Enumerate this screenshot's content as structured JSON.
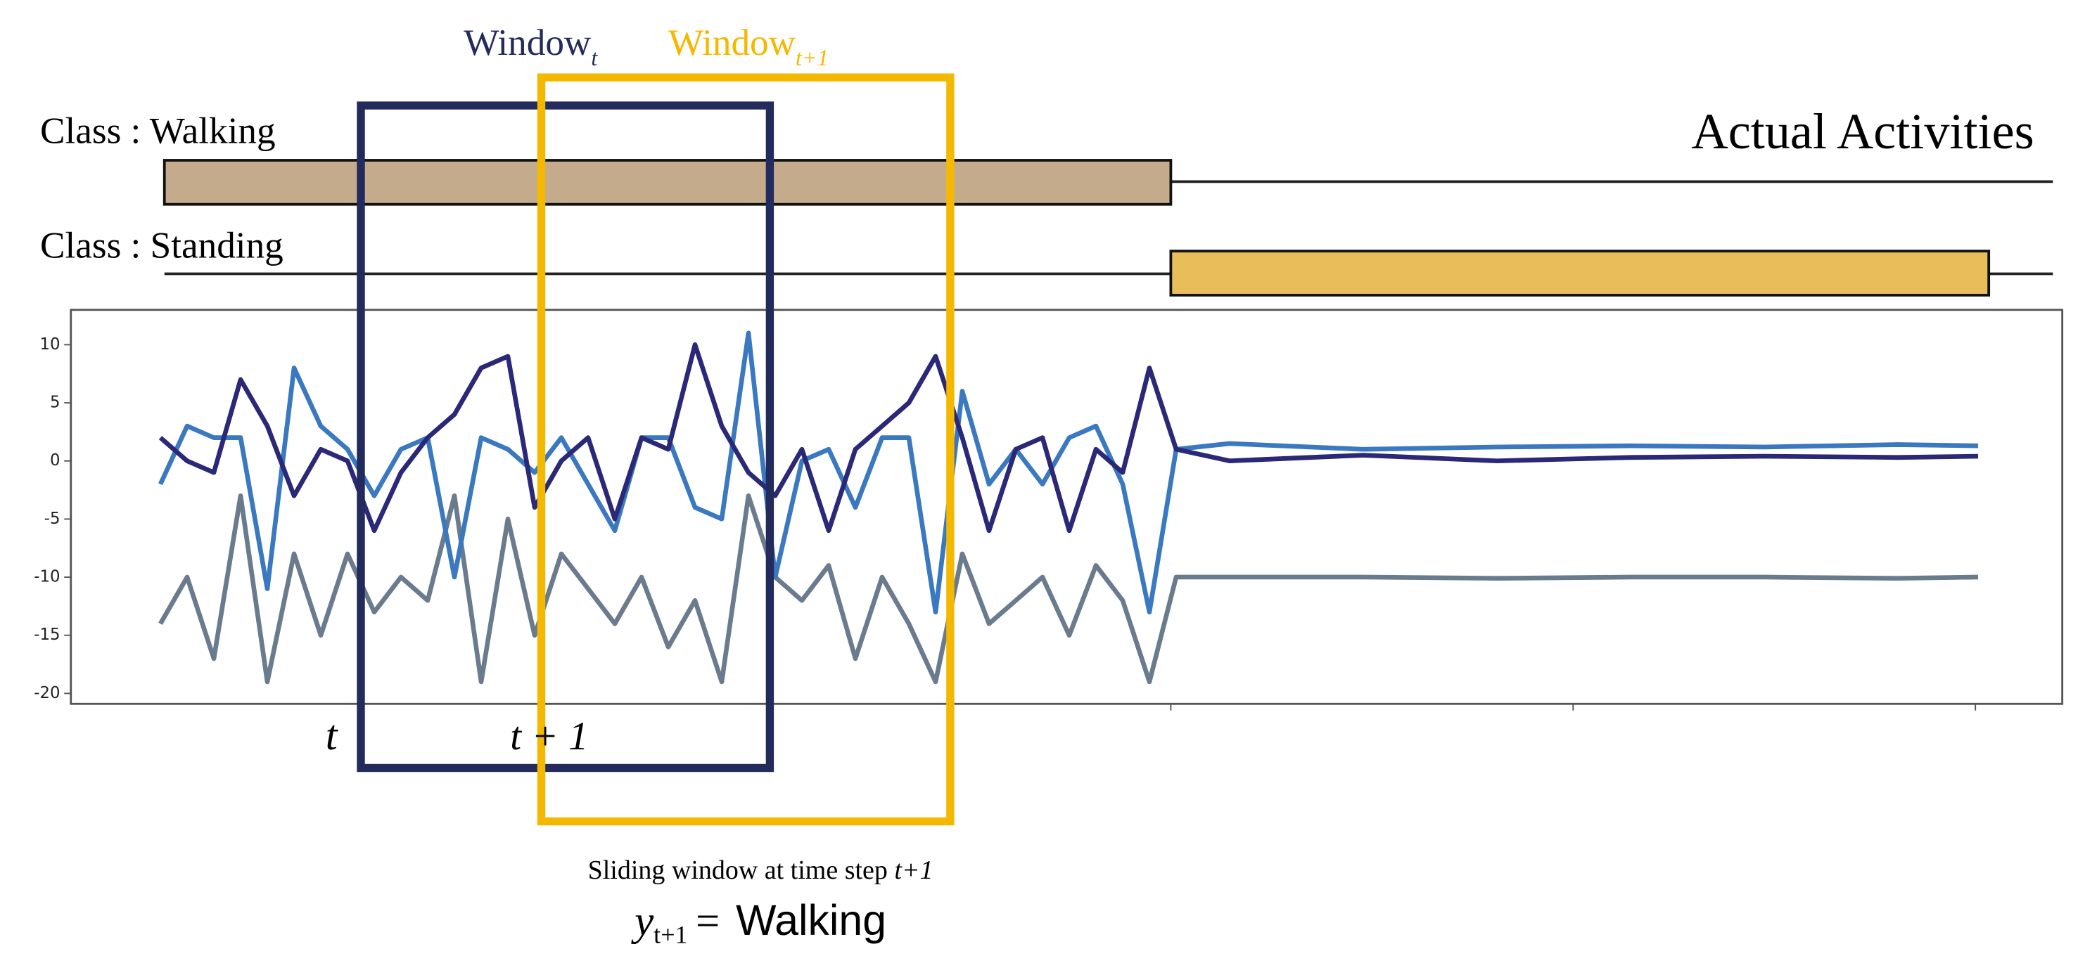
{
  "windows": [
    {
      "label": "Window",
      "subscript": "t"
    },
    {
      "label": "Window",
      "subscript": "t+1"
    }
  ],
  "title": "Actual Activities",
  "classes": [
    {
      "label": "Class : Walking"
    },
    {
      "label": "Class : Standing"
    }
  ],
  "time_labels": [
    "t",
    "t + 1"
  ],
  "caption": {
    "text": "Sliding window at time step ",
    "step": "t+1"
  },
  "prediction": {
    "symbol": "y",
    "subscript": "t+1",
    "equals": "=",
    "value": "Walking"
  },
  "chart_data": {
    "type": "line",
    "x": [
      0,
      2,
      4,
      6,
      8,
      10,
      12,
      14,
      16,
      18,
      20,
      22,
      24,
      26,
      28,
      30,
      32,
      34,
      36,
      38,
      40,
      42,
      44,
      46,
      48,
      50,
      52,
      54,
      56,
      58,
      60,
      62,
      64,
      66,
      68,
      70,
      72,
      74,
      76,
      80,
      90,
      100,
      110,
      120,
      130,
      136
    ],
    "series": [
      {
        "color": "#2b2878",
        "values": [
          2,
          0,
          -1,
          7,
          3,
          -3,
          1,
          0,
          -6,
          -1,
          2,
          4,
          8,
          9,
          -4,
          0,
          2,
          -5,
          2,
          1,
          10,
          3,
          -1,
          -3,
          1,
          -6,
          1,
          3,
          5,
          9,
          2,
          -6,
          1,
          2,
          -6,
          1,
          -1,
          8,
          1,
          0,
          0.5,
          0,
          0.3,
          0.4,
          0.3,
          0.4
        ]
      },
      {
        "color": "#3a78c0",
        "values": [
          -2,
          3,
          2,
          2,
          -11,
          8,
          3,
          1,
          -3,
          1,
          2,
          -10,
          2,
          1,
          -1,
          2,
          -2,
          -6,
          2,
          2,
          -4,
          -5,
          11,
          -10,
          0,
          1,
          -4,
          2,
          2,
          -13,
          6,
          -2,
          1,
          -2,
          2,
          3,
          -2,
          -13,
          1,
          1.5,
          1,
          1.2,
          1.3,
          1.2,
          1.4,
          1.3
        ]
      },
      {
        "color": "#6b7b8e",
        "values": [
          -14,
          -10,
          -17,
          -3,
          -19,
          -8,
          -15,
          -8,
          -13,
          -10,
          -12,
          -3,
          -19,
          -5,
          -15,
          -8,
          -11,
          -14,
          -10,
          -16,
          -12,
          -19,
          -3,
          -10,
          -12,
          -9,
          -17,
          -10,
          -14,
          -19,
          -8,
          -14,
          -12,
          -10,
          -15,
          -9,
          -12,
          -19,
          -10,
          -10,
          -10,
          -10.1,
          -10,
          -10,
          -10.1,
          -10
        ]
      }
    ],
    "xlim": [
      -6.7,
      142.3
    ],
    "ylim": [
      -20.9,
      13
    ],
    "yticks": [
      10,
      5,
      0,
      -5,
      -10,
      -15,
      -20
    ]
  }
}
